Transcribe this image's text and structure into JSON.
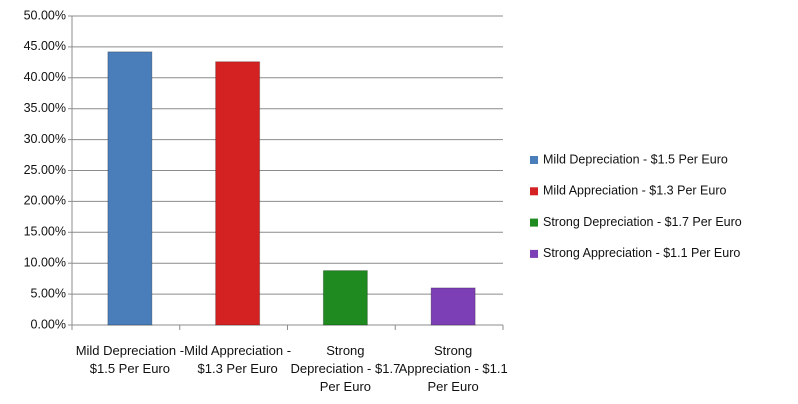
{
  "chart_data": {
    "type": "bar",
    "categories": [
      "Mild Depreciation - $1.5 Per Euro",
      "Mild Appreciation - $1.3 Per Euro",
      "Strong Depreciation - $1.7 Per Euro",
      "Strong Appreciation - $1.1 Per Euro"
    ],
    "values": [
      44.2,
      42.6,
      8.8,
      6.0
    ],
    "colors": [
      "#4a7ebb",
      "#d42222",
      "#1f8a1f",
      "#7d3fb5"
    ],
    "ylim": [
      0,
      50
    ],
    "yticks": [
      {
        "value": 0,
        "label": "0.00%"
      },
      {
        "value": 5,
        "label": "5.00%"
      },
      {
        "value": 10,
        "label": "10.00%"
      },
      {
        "value": 15,
        "label": "15.00%"
      },
      {
        "value": 20,
        "label": "20.00%"
      },
      {
        "value": 25,
        "label": "25.00%"
      },
      {
        "value": 30,
        "label": "30.00%"
      },
      {
        "value": 35,
        "label": "35.00%"
      },
      {
        "value": 40,
        "label": "40.00%"
      },
      {
        "value": 45,
        "label": "45.00%"
      },
      {
        "value": 50,
        "label": "50.00%"
      }
    ],
    "grid": true,
    "legend": "right"
  }
}
